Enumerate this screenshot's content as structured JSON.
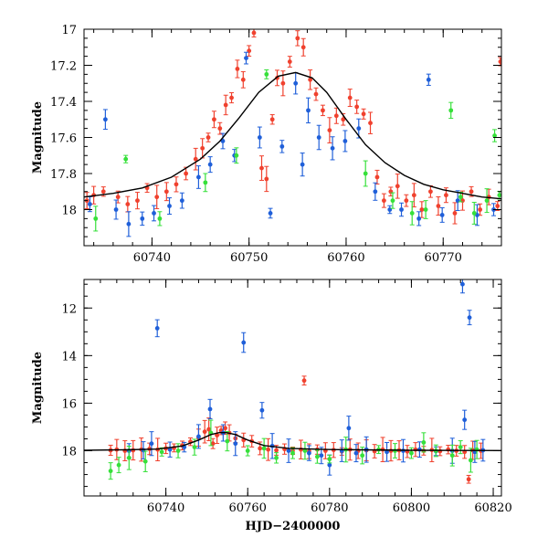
{
  "chart_data": [
    {
      "type": "scatter",
      "title": "",
      "xlabel": "",
      "ylabel": "Magnitude",
      "xlim": [
        60733,
        60776
      ],
      "ylim": [
        18.2,
        17.0
      ],
      "y_inverted": true,
      "x_ticks": [
        60740,
        60750,
        60760,
        60770
      ],
      "x_tick_labels": [
        "60740",
        "60750",
        "60760",
        "60770"
      ],
      "y_ticks": [
        17,
        17.2,
        17.4,
        17.6,
        17.8,
        18
      ],
      "y_tick_labels": [
        "17",
        "17.2",
        "17.4",
        "17.6",
        "17.8",
        "18"
      ],
      "grid": false,
      "colors": {
        "red": "#f0412e",
        "blue": "#1f5fd9",
        "green": "#36e03a",
        "model": "#000000"
      },
      "model_curve": {
        "x": [
          60733,
          60736,
          60739,
          60742,
          60745,
          60747,
          60749,
          60751,
          60753,
          60754.8,
          60756.5,
          60758,
          60760,
          60762,
          60764,
          60766,
          60768,
          60770,
          60772,
          60774,
          60776
        ],
        "y": [
          17.93,
          17.91,
          17.88,
          17.82,
          17.72,
          17.62,
          17.49,
          17.35,
          17.26,
          17.24,
          17.27,
          17.35,
          17.5,
          17.64,
          17.74,
          17.81,
          17.86,
          17.89,
          17.91,
          17.93,
          17.94
        ]
      },
      "series": [
        {
          "color": "red",
          "points": [
            [
              60733.3,
              17.95
            ],
            [
              60734,
              17.92
            ],
            [
              60735,
              17.9
            ],
            [
              60736.5,
              17.93
            ],
            [
              60737.5,
              17.97
            ],
            [
              60738.5,
              17.95
            ],
            [
              60739.5,
              17.88
            ],
            [
              60740.5,
              17.93
            ],
            [
              60741.5,
              17.9
            ],
            [
              60742.5,
              17.86
            ],
            [
              60743.5,
              17.8
            ],
            [
              60744.5,
              17.72
            ],
            [
              60745.2,
              17.66
            ],
            [
              60745.8,
              17.6
            ],
            [
              60746.4,
              17.5
            ],
            [
              60747,
              17.55
            ],
            [
              60747.6,
              17.42
            ],
            [
              60748.2,
              17.38
            ],
            [
              60748.8,
              17.22
            ],
            [
              60749.4,
              17.28
            ],
            [
              60750,
              17.12
            ],
            [
              60750.5,
              17.02
            ],
            [
              60751.3,
              17.77
            ],
            [
              60751.8,
              17.83
            ],
            [
              60752.4,
              17.5
            ],
            [
              60752.9,
              17.27
            ],
            [
              60753.5,
              17.3
            ],
            [
              60754.2,
              17.18
            ],
            [
              60755,
              17.05
            ],
            [
              60755.6,
              17.1
            ],
            [
              60756.3,
              17.28
            ],
            [
              60756.9,
              17.36
            ],
            [
              60757.6,
              17.45
            ],
            [
              60758.3,
              17.56
            ],
            [
              60759,
              17.48
            ],
            [
              60759.7,
              17.5
            ],
            [
              60760.4,
              17.38
            ],
            [
              60761.1,
              17.43
            ],
            [
              60761.8,
              17.47
            ],
            [
              60762.5,
              17.52
            ],
            [
              60763.2,
              17.82
            ],
            [
              60763.9,
              17.95
            ],
            [
              60764.6,
              17.9
            ],
            [
              60765.3,
              17.87
            ],
            [
              60766.2,
              17.95
            ],
            [
              60767,
              17.92
            ],
            [
              60767.8,
              18.0
            ],
            [
              60768.7,
              17.9
            ],
            [
              60769.5,
              17.98
            ],
            [
              60770.3,
              17.92
            ],
            [
              60771.2,
              18.02
            ],
            [
              60772,
              17.95
            ],
            [
              60772.9,
              17.9
            ],
            [
              60773.8,
              18.0
            ],
            [
              60774.7,
              17.93
            ],
            [
              60775.6,
              17.98
            ],
            [
              60775.9,
              17.18
            ]
          ]
        },
        {
          "color": "blue",
          "points": [
            [
              60733.6,
              17.97
            ],
            [
              60735.2,
              17.5
            ],
            [
              60736.3,
              18.0
            ],
            [
              60737.6,
              18.08
            ],
            [
              60739,
              18.05
            ],
            [
              60740.2,
              18.02
            ],
            [
              60741.8,
              17.98
            ],
            [
              60743.1,
              17.95
            ],
            [
              60744.8,
              17.82
            ],
            [
              60746,
              17.75
            ],
            [
              60747.3,
              17.62
            ],
            [
              60748.5,
              17.7
            ],
            [
              60749.7,
              17.16
            ],
            [
              60751.1,
              17.6
            ],
            [
              60752.2,
              18.02
            ],
            [
              60753.4,
              17.65
            ],
            [
              60754.8,
              17.3
            ],
            [
              60755.5,
              17.75
            ],
            [
              60756.1,
              17.45
            ],
            [
              60757.2,
              17.6
            ],
            [
              60758.6,
              17.66
            ],
            [
              60759.9,
              17.62
            ],
            [
              60761.3,
              17.55
            ],
            [
              60763,
              17.9
            ],
            [
              60764.5,
              18.0
            ],
            [
              60765.7,
              18.0
            ],
            [
              60767.5,
              18.05
            ],
            [
              60768.5,
              17.28
            ],
            [
              60769.9,
              18.03
            ],
            [
              60771.5,
              17.95
            ],
            [
              60773.5,
              18.03
            ],
            [
              60775.2,
              18.0
            ]
          ]
        },
        {
          "color": "green",
          "points": [
            [
              60734.2,
              18.05
            ],
            [
              60737.3,
              17.72
            ],
            [
              60740.8,
              18.05
            ],
            [
              60745.5,
              17.85
            ],
            [
              60748.7,
              17.7
            ],
            [
              60751.8,
              17.25
            ],
            [
              60762,
              17.8
            ],
            [
              60764.8,
              17.95
            ],
            [
              60766.8,
              18.02
            ],
            [
              60768.2,
              18.0
            ],
            [
              60770.8,
              17.45
            ],
            [
              60771.8,
              17.93
            ],
            [
              60773.2,
              18.02
            ],
            [
              60774.5,
              17.95
            ],
            [
              60775.3,
              17.59
            ],
            [
              60775.8,
              17.92
            ]
          ]
        }
      ]
    },
    {
      "type": "scatter",
      "title": "",
      "xlabel": "HJD−2400000",
      "ylabel": "Magnitude",
      "xlim": [
        60720,
        60822
      ],
      "ylim": [
        19.9,
        10.8
      ],
      "y_inverted": true,
      "x_ticks": [
        60740,
        60760,
        60780,
        60800,
        60820
      ],
      "x_tick_labels": [
        "60740",
        "60760",
        "60780",
        "60800",
        "60820"
      ],
      "y_ticks": [
        12,
        14,
        16,
        18
      ],
      "y_tick_labels": [
        "12",
        "14",
        "16",
        "18"
      ],
      "grid": false,
      "colors": {
        "red": "#f0412e",
        "blue": "#1f5fd9",
        "green": "#36e03a",
        "model": "#000000"
      },
      "model_curve": {
        "x": [
          60720,
          60730,
          60738,
          60744,
          60748,
          60751,
          60753,
          60754.8,
          60757,
          60760,
          60764,
          60770,
          60780,
          60800,
          60822
        ],
        "y": [
          17.98,
          17.96,
          17.93,
          17.8,
          17.55,
          17.32,
          17.24,
          17.24,
          17.32,
          17.55,
          17.78,
          17.9,
          17.95,
          17.98,
          17.99
        ]
      },
      "series": [
        {
          "color": "red",
          "points": [
            [
              60726.5,
              17.98
            ],
            [
              60728,
              17.95
            ],
            [
              60730,
              18.0
            ],
            [
              60732,
              17.98
            ],
            [
              60734,
              17.95
            ],
            [
              60736,
              17.92
            ],
            [
              60738,
              17.95
            ],
            [
              60740,
              17.9
            ],
            [
              60742,
              17.88
            ],
            [
              60744,
              17.78
            ],
            [
              60746,
              17.62
            ],
            [
              60748,
              17.45
            ],
            [
              60749.5,
              17.2
            ],
            [
              60750.5,
              17.1
            ],
            [
              60751.5,
              17.7
            ],
            [
              60752.5,
              17.35
            ],
            [
              60753.5,
              17.15
            ],
            [
              60754.5,
              17.05
            ],
            [
              60755.5,
              17.25
            ],
            [
              60757,
              17.48
            ],
            [
              60759,
              17.55
            ],
            [
              60761,
              17.6
            ],
            [
              60763,
              17.9
            ],
            [
              60765,
              17.95
            ],
            [
              60767,
              17.98
            ],
            [
              60769,
              17.93
            ],
            [
              60771,
              18.0
            ],
            [
              60773,
              17.95
            ],
            [
              60773.8,
              15.05
            ],
            [
              60775,
              18.02
            ],
            [
              60777,
              17.95
            ],
            [
              60779,
              18.0
            ],
            [
              60781,
              17.97
            ],
            [
              60783,
              18.03
            ],
            [
              60785,
              17.95
            ],
            [
              60787,
              18.0
            ],
            [
              60789,
              17.98
            ],
            [
              60791,
              18.02
            ],
            [
              60793,
              17.95
            ],
            [
              60795,
              18.0
            ],
            [
              60797,
              17.98
            ],
            [
              60799,
              18.03
            ],
            [
              60801,
              17.95
            ],
            [
              60803,
              18.0
            ],
            [
              60805,
              17.97
            ],
            [
              60807,
              18.02
            ],
            [
              60809,
              17.95
            ],
            [
              60811,
              18.0
            ],
            [
              60813,
              18.05
            ],
            [
              60814,
              19.2
            ],
            [
              60815,
              17.98
            ],
            [
              60817,
              18.0
            ]
          ]
        },
        {
          "color": "blue",
          "points": [
            [
              60731,
              18.0
            ],
            [
              60734.5,
              17.98
            ],
            [
              60736.5,
              17.7
            ],
            [
              60737.9,
              12.85
            ],
            [
              60741,
              17.95
            ],
            [
              60744.5,
              17.85
            ],
            [
              60748,
              17.4
            ],
            [
              60750.8,
              16.25
            ],
            [
              60754,
              17.25
            ],
            [
              60757,
              17.7
            ],
            [
              60759,
              13.45
            ],
            [
              60763.5,
              16.3
            ],
            [
              60766,
              17.8
            ],
            [
              60770,
              18.0
            ],
            [
              60775,
              18.1
            ],
            [
              60778,
              18.2
            ],
            [
              60780,
              18.6
            ],
            [
              60783,
              18.0
            ],
            [
              60784.7,
              17.05
            ],
            [
              60786.5,
              18.1
            ],
            [
              60789,
              17.95
            ],
            [
              60794,
              18.05
            ],
            [
              60798,
              18.0
            ],
            [
              60802,
              17.95
            ],
            [
              60806,
              18.02
            ],
            [
              60810,
              18.0
            ],
            [
              60812.5,
              11.0
            ],
            [
              60813,
              16.7
            ],
            [
              60814.2,
              12.4
            ],
            [
              60815.5,
              18.05
            ],
            [
              60817.5,
              17.98
            ]
          ]
        },
        {
          "color": "green",
          "points": [
            [
              60726.5,
              18.85
            ],
            [
              60728.5,
              18.6
            ],
            [
              60731,
              18.3
            ],
            [
              60735,
              18.45
            ],
            [
              60739,
              18.05
            ],
            [
              60743,
              18.0
            ],
            [
              60747,
              17.85
            ],
            [
              60751,
              17.25
            ],
            [
              60755,
              17.6
            ],
            [
              60760,
              18.0
            ],
            [
              60764,
              17.9
            ],
            [
              60767,
              18.3
            ],
            [
              60771,
              18.1
            ],
            [
              60774,
              18.0
            ],
            [
              60777,
              18.25
            ],
            [
              60780,
              18.35
            ],
            [
              60784,
              17.95
            ],
            [
              60788,
              18.2
            ],
            [
              60792,
              17.95
            ],
            [
              60796,
              18.0
            ],
            [
              60800,
              18.1
            ],
            [
              60803,
              17.65
            ],
            [
              60806,
              18.0
            ],
            [
              60810,
              18.2
            ],
            [
              60812,
              17.85
            ],
            [
              60814.5,
              18.4
            ],
            [
              60816,
              17.95
            ]
          ]
        }
      ]
    }
  ]
}
